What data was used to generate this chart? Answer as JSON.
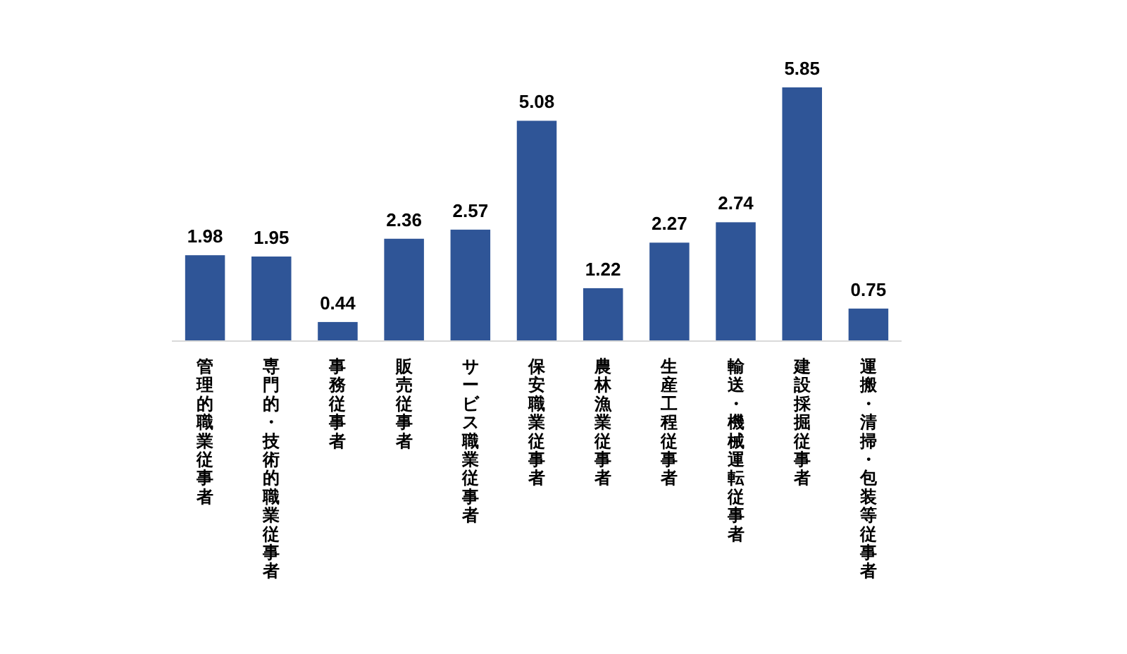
{
  "chart_data": {
    "type": "bar",
    "categories": [
      "管理的職業従事者",
      "専門的・技術的職業従事者",
      "事務従事者",
      "販売従事者",
      "サービス職業従事者",
      "保安職業従事者",
      "農林漁業従事者",
      "生産工程従事者",
      "輸送・機械運転従事者",
      "建設採掘従事者",
      "運搬・清掃・包装等従事者"
    ],
    "values": [
      1.98,
      1.95,
      0.44,
      2.36,
      2.57,
      5.08,
      1.22,
      2.27,
      2.74,
      5.85,
      0.75
    ],
    "color": "#2f5597",
    "data_labels": true
  }
}
